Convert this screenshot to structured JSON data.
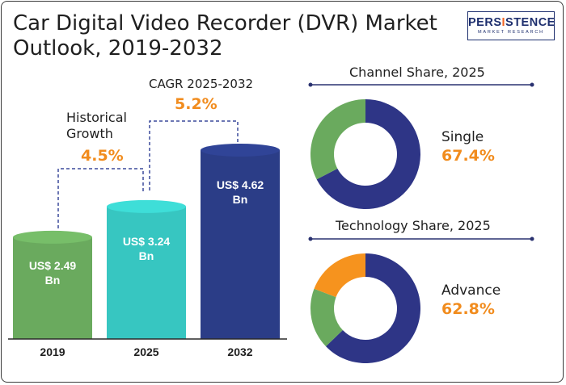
{
  "title": "Car Digital Video Recorder (DVR) Market Outlook, 2019-2032",
  "logo": {
    "brand_pre": "PERS",
    "brand_hl": "I",
    "brand_post": "STENCE",
    "sub": "MARKET RESEARCH"
  },
  "annotations": {
    "historical_label": "Historical Growth",
    "historical_value": "4.5%",
    "cagr_label": "CAGR 2025-2032",
    "cagr_value": "5.2%"
  },
  "channel": {
    "title": "Channel Share, 2025",
    "label": "Single",
    "value": "67.4%"
  },
  "technology": {
    "title": "Technology Share, 2025",
    "label": "Advance",
    "value": "62.8%"
  },
  "colors": {
    "green": "#6aaa5e",
    "teal": "#37c6c1",
    "navy": "#2b3d87",
    "donut_navy": "#2e3586",
    "orange": "#f6931e",
    "accent": "#f18c1e"
  },
  "chart_data": [
    {
      "type": "bar",
      "categories": [
        "2019",
        "2025",
        "2032"
      ],
      "values": [
        2.49,
        3.24,
        4.62
      ],
      "value_labels": [
        "US$ 2.49 Bn",
        "US$ 3.24 Bn",
        "US$ 4.62 Bn"
      ],
      "colors": [
        "#6aaa5e",
        "#37c6c1",
        "#2b3d87"
      ]
    },
    {
      "type": "pie",
      "title": "Channel Share, 2025",
      "slices": [
        {
          "label": "Single",
          "value": 67.4,
          "color": "#2e3586"
        },
        {
          "label": "",
          "value": 32.6,
          "color": "#6aaa5e"
        }
      ]
    },
    {
      "type": "pie",
      "title": "Technology Share, 2025",
      "slices": [
        {
          "label": "Advance",
          "value": 62.8,
          "color": "#2e3586"
        },
        {
          "label": "",
          "value": 18.0,
          "color": "#6aaa5e"
        },
        {
          "label": "",
          "value": 19.2,
          "color": "#f6931e"
        }
      ]
    }
  ]
}
